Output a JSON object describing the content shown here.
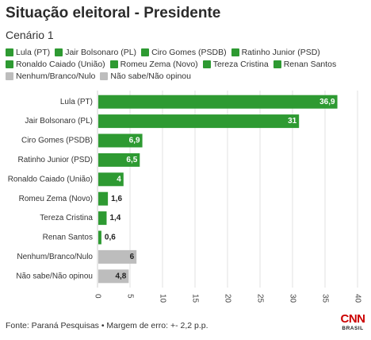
{
  "header": {
    "title": "Situação eleitoral - Presidente",
    "subtitle": "Cenário 1"
  },
  "colors": {
    "candidate": "#2e9a32",
    "other": "#bdbdbd",
    "cnn_red": "#cc0000"
  },
  "legend": [
    {
      "label": "Lula (PT)",
      "color": "#2e9a32"
    },
    {
      "label": "Jair Bolsonaro (PL)",
      "color": "#2e9a32"
    },
    {
      "label": "Ciro Gomes (PSDB)",
      "color": "#2e9a32"
    },
    {
      "label": "Ratinho Junior (PSD)",
      "color": "#2e9a32"
    },
    {
      "label": "Ronaldo Caiado (União)",
      "color": "#2e9a32"
    },
    {
      "label": "Romeu Zema (Novo)",
      "color": "#2e9a32"
    },
    {
      "label": "Tereza Cristina",
      "color": "#2e9a32"
    },
    {
      "label": "Renan Santos",
      "color": "#2e9a32"
    },
    {
      "label": "Nenhum/Branco/Nulo",
      "color": "#bdbdbd"
    },
    {
      "label": "Não sabe/Não opinou",
      "color": "#bdbdbd"
    }
  ],
  "chart_data": {
    "type": "bar",
    "orientation": "horizontal",
    "categories": [
      "Lula (PT)",
      "Jair Bolsonaro (PL)",
      "Ciro Gomes (PSDB)",
      "Ratinho Junior (PSD)",
      "Ronaldo Caiado (União)",
      "Romeu Zema (Novo)",
      "Tereza Cristina",
      "Renan Santos",
      "Nenhum/Branco/Nulo",
      "Não sabe/Não opinou"
    ],
    "values": [
      36.9,
      31,
      6.9,
      6.5,
      4,
      1.6,
      1.4,
      0.6,
      6,
      4.8
    ],
    "value_labels": [
      "36,9",
      "31",
      "6,9",
      "6,5",
      "4",
      "1,6",
      "1,4",
      "0,6",
      "6",
      "4,8"
    ],
    "colors": [
      "#2e9a32",
      "#2e9a32",
      "#2e9a32",
      "#2e9a32",
      "#2e9a32",
      "#2e9a32",
      "#2e9a32",
      "#2e9a32",
      "#bdbdbd",
      "#bdbdbd"
    ],
    "xlim": [
      0,
      40
    ],
    "xticks": [
      "0",
      "5",
      "10",
      "15",
      "20",
      "25",
      "30",
      "35",
      "40"
    ],
    "xlabel": "",
    "ylabel": "",
    "grid": "vertical",
    "legend_position": "top"
  },
  "footer": {
    "source": "Fonte: Paraná Pesquisas • Margem de erro: +- 2,2 p.p."
  },
  "logo": {
    "main": "CNN",
    "sub": "BRASIL"
  }
}
